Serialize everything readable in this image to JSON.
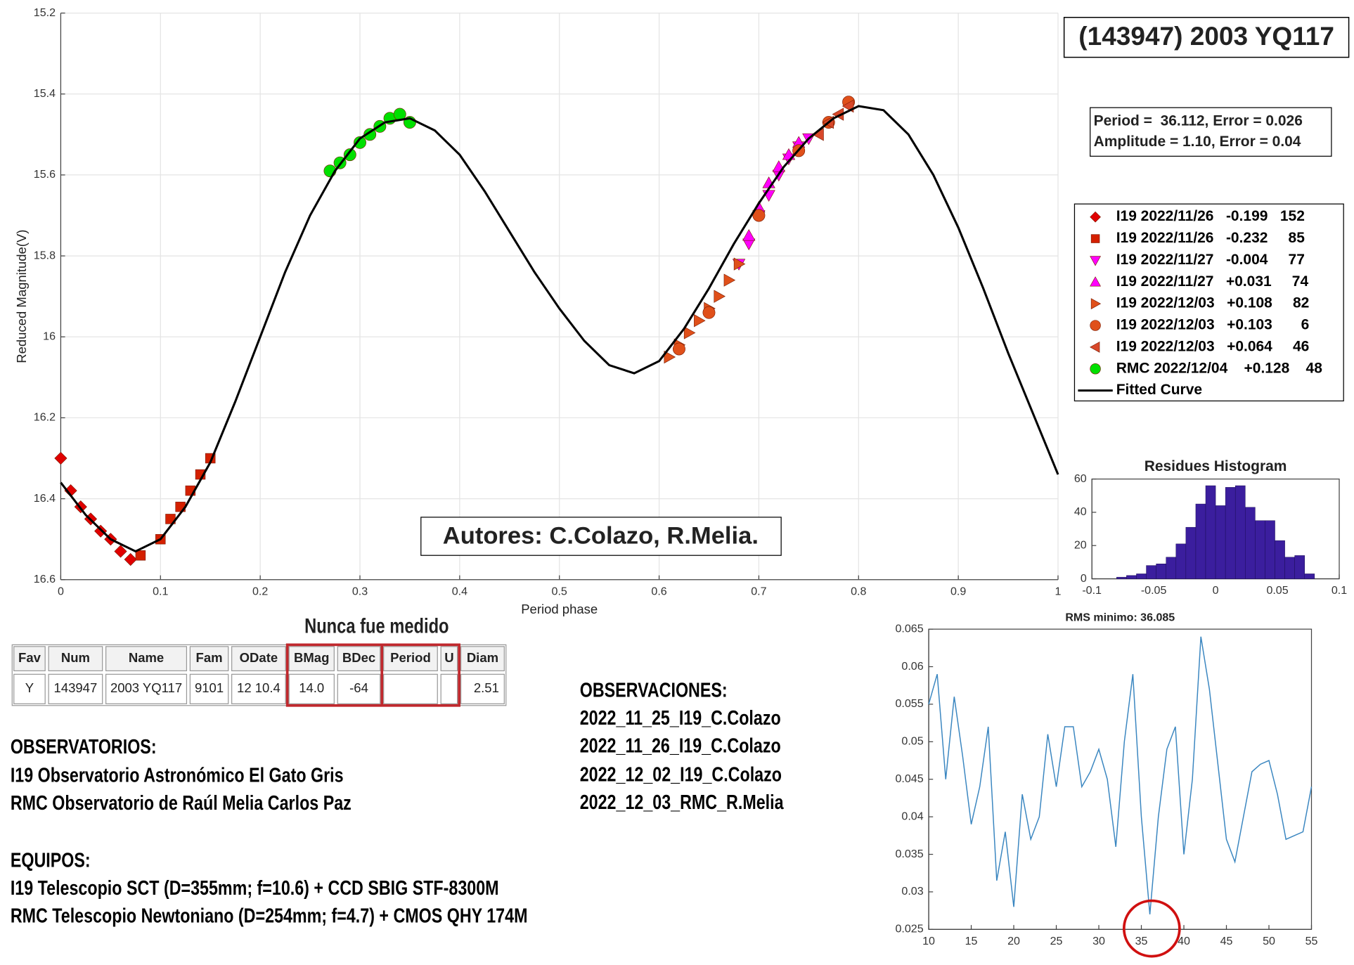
{
  "chart_data": [
    {
      "type": "scatter",
      "xlabel": "Period phase",
      "ylabel": "Reduced Magnitude(V)",
      "xlim": [
        0,
        1
      ],
      "ylim": [
        16.6,
        15.2
      ],
      "xticks": [
        0,
        0.1,
        0.2,
        0.3,
        0.4,
        0.5,
        0.6,
        0.7,
        0.8,
        0.9,
        1
      ],
      "yticks": [
        15.2,
        15.4,
        15.6,
        15.8,
        16,
        16.2,
        16.4,
        16.6
      ],
      "grid": true,
      "series": [
        {
          "name": "I19 2022/11/26   -0.199   152",
          "color": "#e00000",
          "marker": "diamond",
          "x": [
            0,
            0.01,
            0.02,
            0.03,
            0.04,
            0.05,
            0.06,
            0.07
          ],
          "values": [
            16.3,
            16.38,
            16.42,
            16.45,
            16.48,
            16.5,
            16.53,
            16.55
          ]
        },
        {
          "name": "I19 2022/11/26   -0.232     85",
          "color": "#d42000",
          "marker": "square",
          "x": [
            0.08,
            0.1,
            0.11,
            0.12,
            0.13,
            0.14,
            0.15
          ],
          "values": [
            16.54,
            16.5,
            16.45,
            16.42,
            16.38,
            16.34,
            16.3
          ]
        },
        {
          "name": "I19 2022/11/27   -0.004     77",
          "color": "#ff00ff",
          "marker": "triangle-down",
          "x": [
            0.68,
            0.69,
            0.7,
            0.71,
            0.72,
            0.73,
            0.74,
            0.75
          ],
          "values": [
            15.82,
            15.77,
            15.7,
            15.65,
            15.6,
            15.56,
            15.53,
            15.51
          ]
        },
        {
          "name": "I19 2022/11/27   +0.031     74",
          "color": "#ff00ff",
          "marker": "triangle-up",
          "x": [
            0.69,
            0.7,
            0.71,
            0.72,
            0.73,
            0.74
          ],
          "values": [
            15.75,
            15.68,
            15.62,
            15.58,
            15.55,
            15.52
          ]
        },
        {
          "name": "I19 2022/12/03   +0.108     82",
          "color": "#e0501a",
          "marker": "triangle-right",
          "x": [
            0.61,
            0.62,
            0.63,
            0.64,
            0.65,
            0.66,
            0.67,
            0.68
          ],
          "values": [
            16.05,
            16.02,
            15.99,
            15.96,
            15.93,
            15.9,
            15.86,
            15.82
          ]
        },
        {
          "name": "I19 2022/12/03   +0.103       6",
          "color": "#e0501a",
          "marker": "circle",
          "x": [
            0.62,
            0.65,
            0.7,
            0.74,
            0.77,
            0.79
          ],
          "values": [
            16.03,
            15.94,
            15.7,
            15.54,
            15.47,
            15.42
          ]
        },
        {
          "name": "I19 2022/12/03   +0.064     46",
          "color": "#d8482a",
          "marker": "triangle-left",
          "x": [
            0.76,
            0.77,
            0.78,
            0.79
          ],
          "values": [
            15.5,
            15.47,
            15.45,
            15.43
          ]
        },
        {
          "name": "RMC 2022/12/04    +0.128    48",
          "color": "#00e000",
          "marker": "circle",
          "x": [
            0.27,
            0.28,
            0.29,
            0.3,
            0.31,
            0.32,
            0.33,
            0.34,
            0.35
          ],
          "values": [
            15.59,
            15.57,
            15.55,
            15.52,
            15.5,
            15.48,
            15.46,
            15.45,
            15.47
          ]
        },
        {
          "name": "Fitted Curve",
          "color": "#000000",
          "marker": "line",
          "x": [
            0,
            0.025,
            0.05,
            0.075,
            0.1,
            0.125,
            0.15,
            0.175,
            0.2,
            0.225,
            0.25,
            0.275,
            0.3,
            0.325,
            0.35,
            0.375,
            0.4,
            0.425,
            0.45,
            0.475,
            0.5,
            0.525,
            0.55,
            0.575,
            0.6,
            0.625,
            0.65,
            0.675,
            0.7,
            0.725,
            0.75,
            0.775,
            0.8,
            0.825,
            0.85,
            0.875,
            0.9,
            0.925,
            0.95,
            0.975,
            1
          ],
          "values": [
            16.36,
            16.44,
            16.5,
            16.53,
            16.5,
            16.42,
            16.31,
            16.16,
            16.0,
            15.84,
            15.7,
            15.59,
            15.51,
            15.47,
            15.46,
            15.49,
            15.55,
            15.64,
            15.74,
            15.84,
            15.93,
            16.01,
            16.07,
            16.09,
            16.06,
            15.98,
            15.88,
            15.77,
            15.67,
            15.58,
            15.51,
            15.46,
            15.43,
            15.44,
            15.5,
            15.6,
            15.73,
            15.88,
            16.04,
            16.19,
            16.34
          ]
        }
      ]
    },
    {
      "type": "histogram",
      "title": "Residues Histogram",
      "color": "#3b1e9e",
      "bins": [
        -0.08,
        -0.072,
        -0.064,
        -0.056,
        -0.048,
        -0.04,
        -0.032,
        -0.024,
        -0.016,
        -0.008,
        0,
        0.008,
        0.016,
        0.024,
        0.032,
        0.04,
        0.048,
        0.056,
        0.064,
        0.072,
        0.08
      ],
      "values": [
        1,
        2,
        3,
        8,
        9,
        13,
        21,
        31,
        45,
        56,
        44,
        55,
        56,
        43,
        35,
        35,
        23,
        13,
        14,
        3
      ],
      "xlim": [
        -0.1,
        0.1
      ],
      "xticks": [
        -0.1,
        -0.05,
        0,
        0.05,
        0.1
      ],
      "ylim": [
        0,
        60
      ],
      "yticks": [
        0,
        20,
        40,
        60
      ]
    },
    {
      "type": "line",
      "title": "RMS minimo: 36.085",
      "color": "#3a86c0",
      "x": [
        10,
        11,
        12,
        13,
        14,
        15,
        16,
        17,
        18,
        19,
        20,
        21,
        22,
        23,
        24,
        25,
        26,
        27,
        28,
        29,
        30,
        31,
        32,
        33,
        34,
        35,
        36,
        37,
        38,
        39,
        40,
        41,
        42,
        43,
        44,
        45,
        46,
        47,
        48,
        49,
        50,
        51,
        52,
        53,
        54,
        55
      ],
      "values": [
        0.055,
        0.059,
        0.045,
        0.056,
        0.048,
        0.039,
        0.044,
        0.052,
        0.0315,
        0.038,
        0.028,
        0.043,
        0.037,
        0.04,
        0.051,
        0.044,
        0.052,
        0.052,
        0.044,
        0.046,
        0.049,
        0.045,
        0.036,
        0.05,
        0.059,
        0.04,
        0.027,
        0.04,
        0.049,
        0.052,
        0.035,
        0.045,
        0.064,
        0.057,
        0.047,
        0.037,
        0.034,
        0.04,
        0.046,
        0.047,
        0.0475,
        0.043,
        0.037,
        0.0375,
        0.038,
        0.044
      ],
      "xlim": [
        10,
        55
      ],
      "xticks": [
        10,
        15,
        20,
        25,
        30,
        35,
        40,
        45,
        50,
        55
      ],
      "ylim": [
        0.025,
        0.065
      ],
      "yticks": [
        0.025,
        0.03,
        0.035,
        0.04,
        0.045,
        0.05,
        0.055,
        0.06,
        0.065
      ]
    }
  ],
  "object_title": "(143947) 2003 YQ117",
  "fit_info": [
    "Period =  36.112, Error = 0.026",
    "Amplitude = 1.10, Error = 0.04"
  ],
  "authors": "Autores: C.Colazo, R.Melia.",
  "annotation": "Nunca fue medido",
  "table": {
    "headers": [
      "Fav",
      "Num",
      "Name",
      "Fam",
      "ODate",
      "BMag",
      "BDec",
      "Period",
      "U",
      "Diam"
    ],
    "rows": [
      [
        "Y",
        "143947",
        "2003 YQ117",
        "9101",
        "12 10.4",
        "14.0",
        "-64",
        null,
        null,
        "2.51"
      ]
    ]
  },
  "observaciones": {
    "heading": "OBSERVACIONES:",
    "items": [
      "2022_11_25_I19_C.Colazo",
      "2022_11_26_I19_C.Colazo",
      "2022_12_02_I19_C.Colazo",
      "2022_12_03_RMC_R.Melia"
    ]
  },
  "observatorios": {
    "heading": "OBSERVATORIOS:",
    "items": [
      "I19 Observatorio Astronómico El Gato Gris",
      "RMC Observatorio de Raúl Melia Carlos Paz"
    ]
  },
  "equipos": {
    "heading": "EQUIPOS:",
    "items": [
      "I19 Telescopio SCT (D=355mm; f=10.6) + CCD SBIG STF-8300M",
      "RMC Telescopio Newtoniano (D=254mm; f=4.7) + CMOS QHY 174M"
    ]
  }
}
